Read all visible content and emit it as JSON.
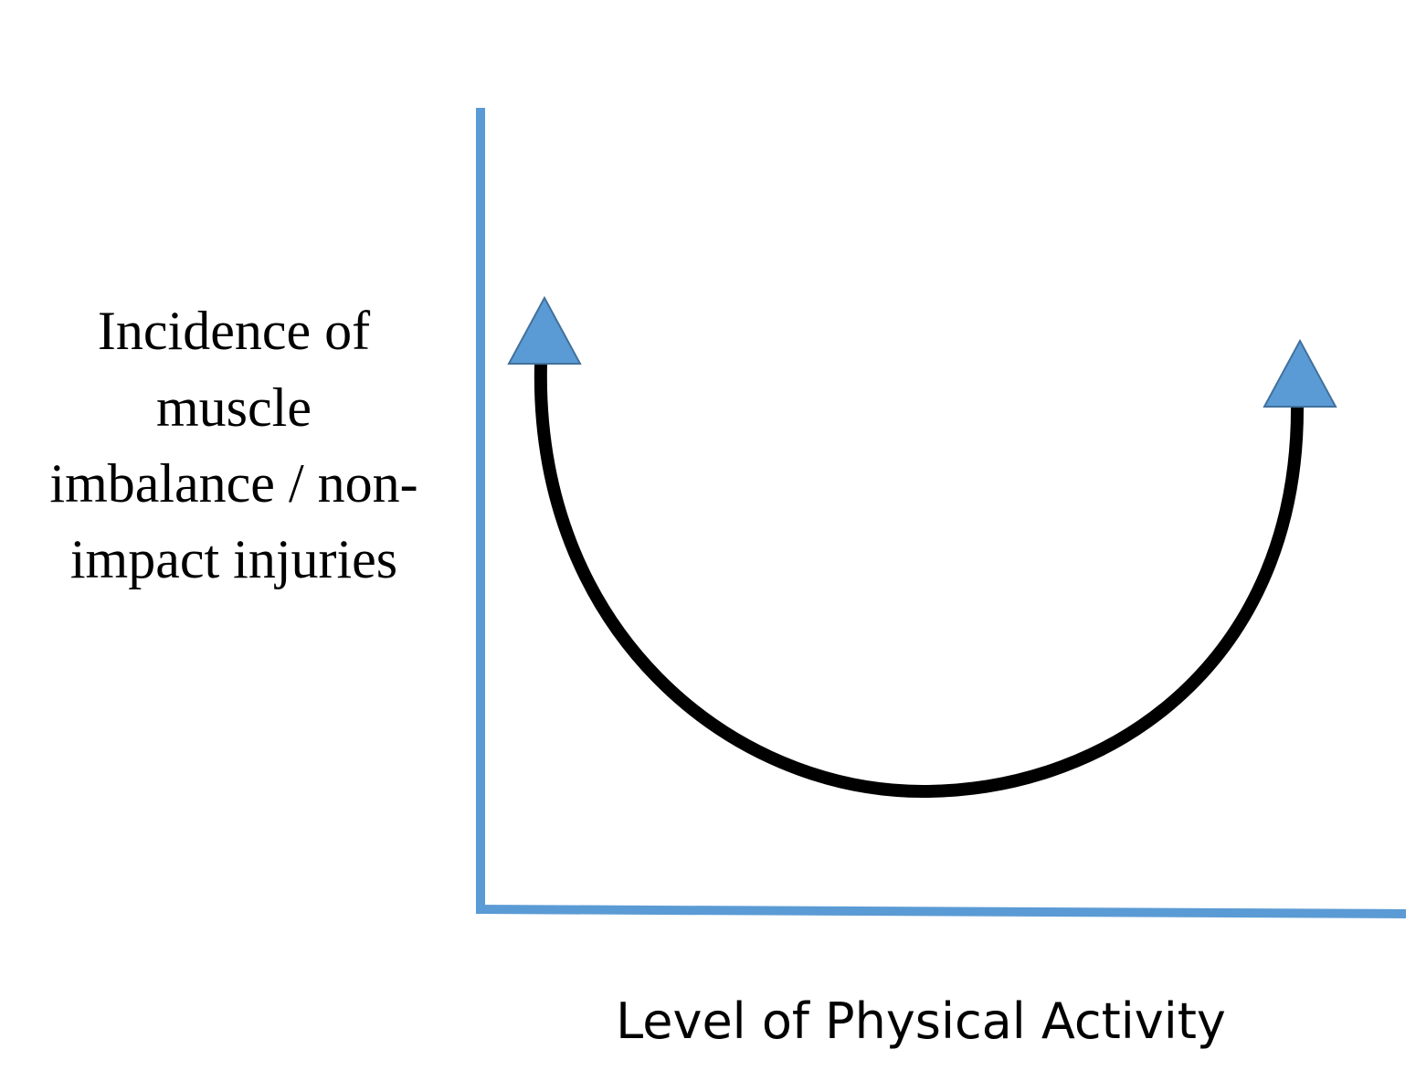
{
  "y_axis_label": {
    "lines": [
      "Incidence of",
      "muscle",
      "imbalance / non-",
      "impact injuries"
    ]
  },
  "x_axis_label": "Level of Physical Activity"
}
